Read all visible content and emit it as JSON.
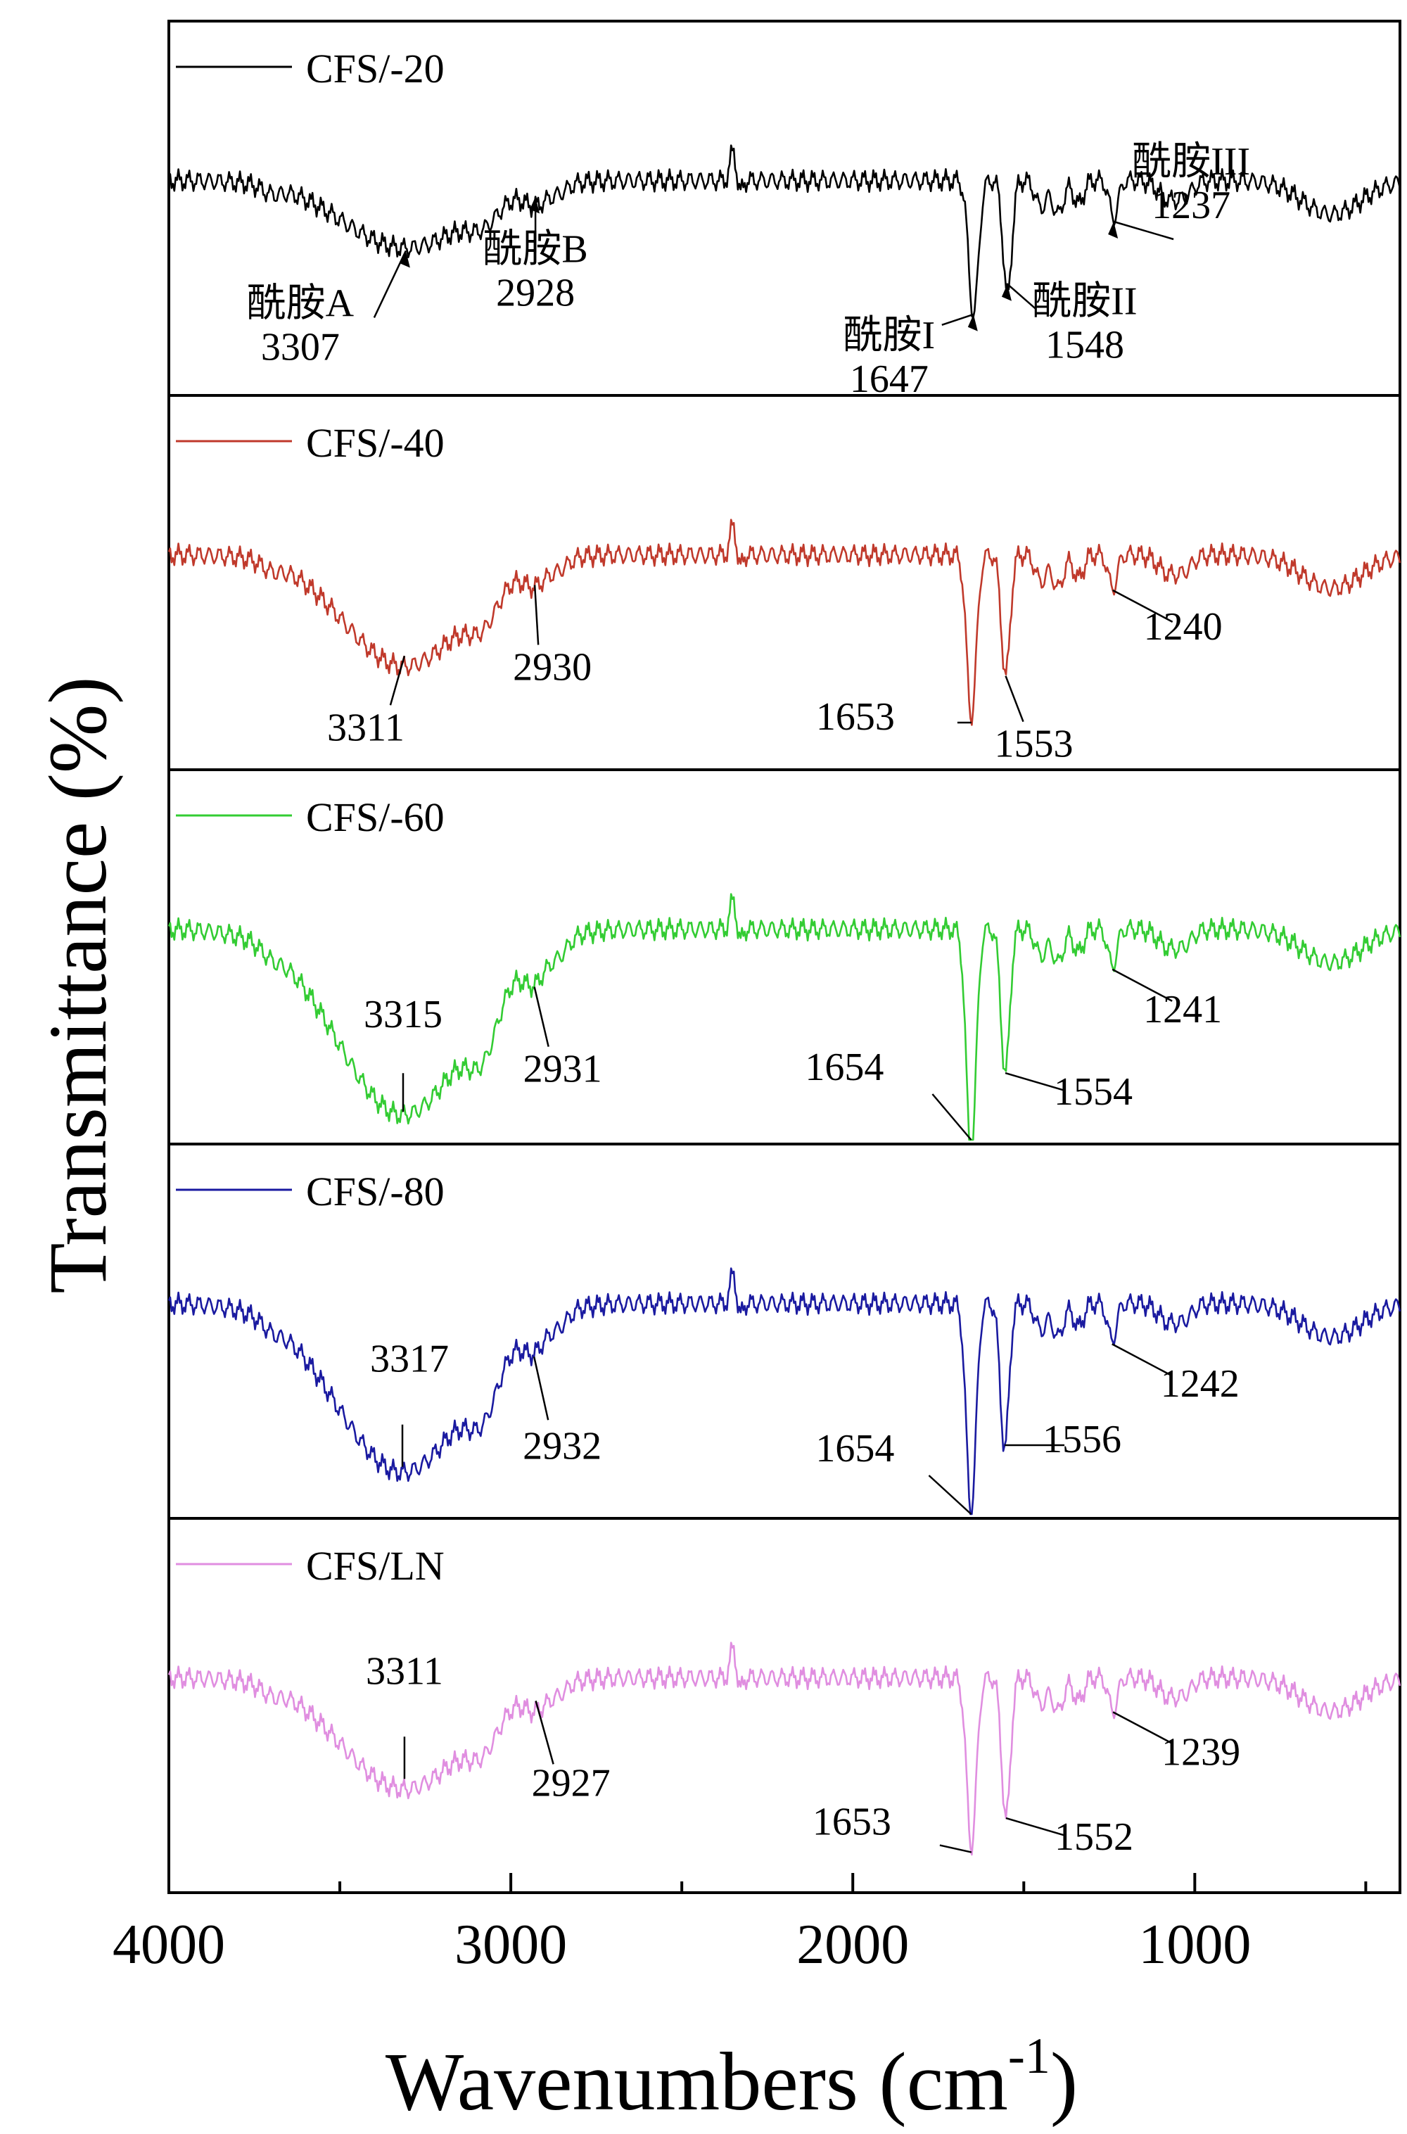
{
  "chart_data": {
    "type": "line",
    "title": "",
    "xlabel": "Wavenumbers (cm",
    "xlabel_sup": "-1",
    "xlabel_close": ")",
    "ylabel": "Transmittance (%)",
    "xlim": [
      4000,
      400
    ],
    "x_reversed": true,
    "x_ticks": [
      4000,
      3000,
      2000,
      1000
    ],
    "x_tick_labels": [
      "4000",
      "3000",
      "2000",
      "1000"
    ],
    "layout": "stacked panels",
    "grid": false,
    "legend_placement": "top-left of each panel",
    "panels": [
      {
        "name": "CFS/-20",
        "color": "#000000",
        "peaks": [
          {
            "x": 3307,
            "label": "3307",
            "group": "酰胺A"
          },
          {
            "x": 2928,
            "label": "2928",
            "group": "酰胺B"
          },
          {
            "x": 1647,
            "label": "1647",
            "group": "酰胺I"
          },
          {
            "x": 1548,
            "label": "1548",
            "group": "酰胺II"
          },
          {
            "x": 1237,
            "label": "1237",
            "group": "酰胺III"
          }
        ]
      },
      {
        "name": "CFS/-40",
        "color": "#c0392b",
        "peaks": [
          {
            "x": 3311,
            "label": "3311"
          },
          {
            "x": 2930,
            "label": "2930"
          },
          {
            "x": 1653,
            "label": "1653"
          },
          {
            "x": 1553,
            "label": "1553"
          },
          {
            "x": 1240,
            "label": "1240"
          }
        ]
      },
      {
        "name": "CFS/-60",
        "color": "#33cc33",
        "peaks": [
          {
            "x": 3315,
            "label": "3315"
          },
          {
            "x": 2931,
            "label": "2931"
          },
          {
            "x": 1654,
            "label": "1654"
          },
          {
            "x": 1554,
            "label": "1554"
          },
          {
            "x": 1241,
            "label": "1241"
          }
        ]
      },
      {
        "name": "CFS/-80",
        "color": "#1a1aa0",
        "peaks": [
          {
            "x": 3317,
            "label": "3317"
          },
          {
            "x": 2932,
            "label": "2932"
          },
          {
            "x": 1654,
            "label": "1654"
          },
          {
            "x": 1556,
            "label": "1556"
          },
          {
            "x": 1242,
            "label": "1242"
          }
        ]
      },
      {
        "name": "CFS/LN",
        "color": "#e08ee0",
        "peaks": [
          {
            "x": 3311,
            "label": "3311"
          },
          {
            "x": 2927,
            "label": "2927"
          },
          {
            "x": 1653,
            "label": "1653"
          },
          {
            "x": 1552,
            "label": "1552"
          },
          {
            "x": 1239,
            "label": "1239"
          }
        ]
      }
    ]
  }
}
